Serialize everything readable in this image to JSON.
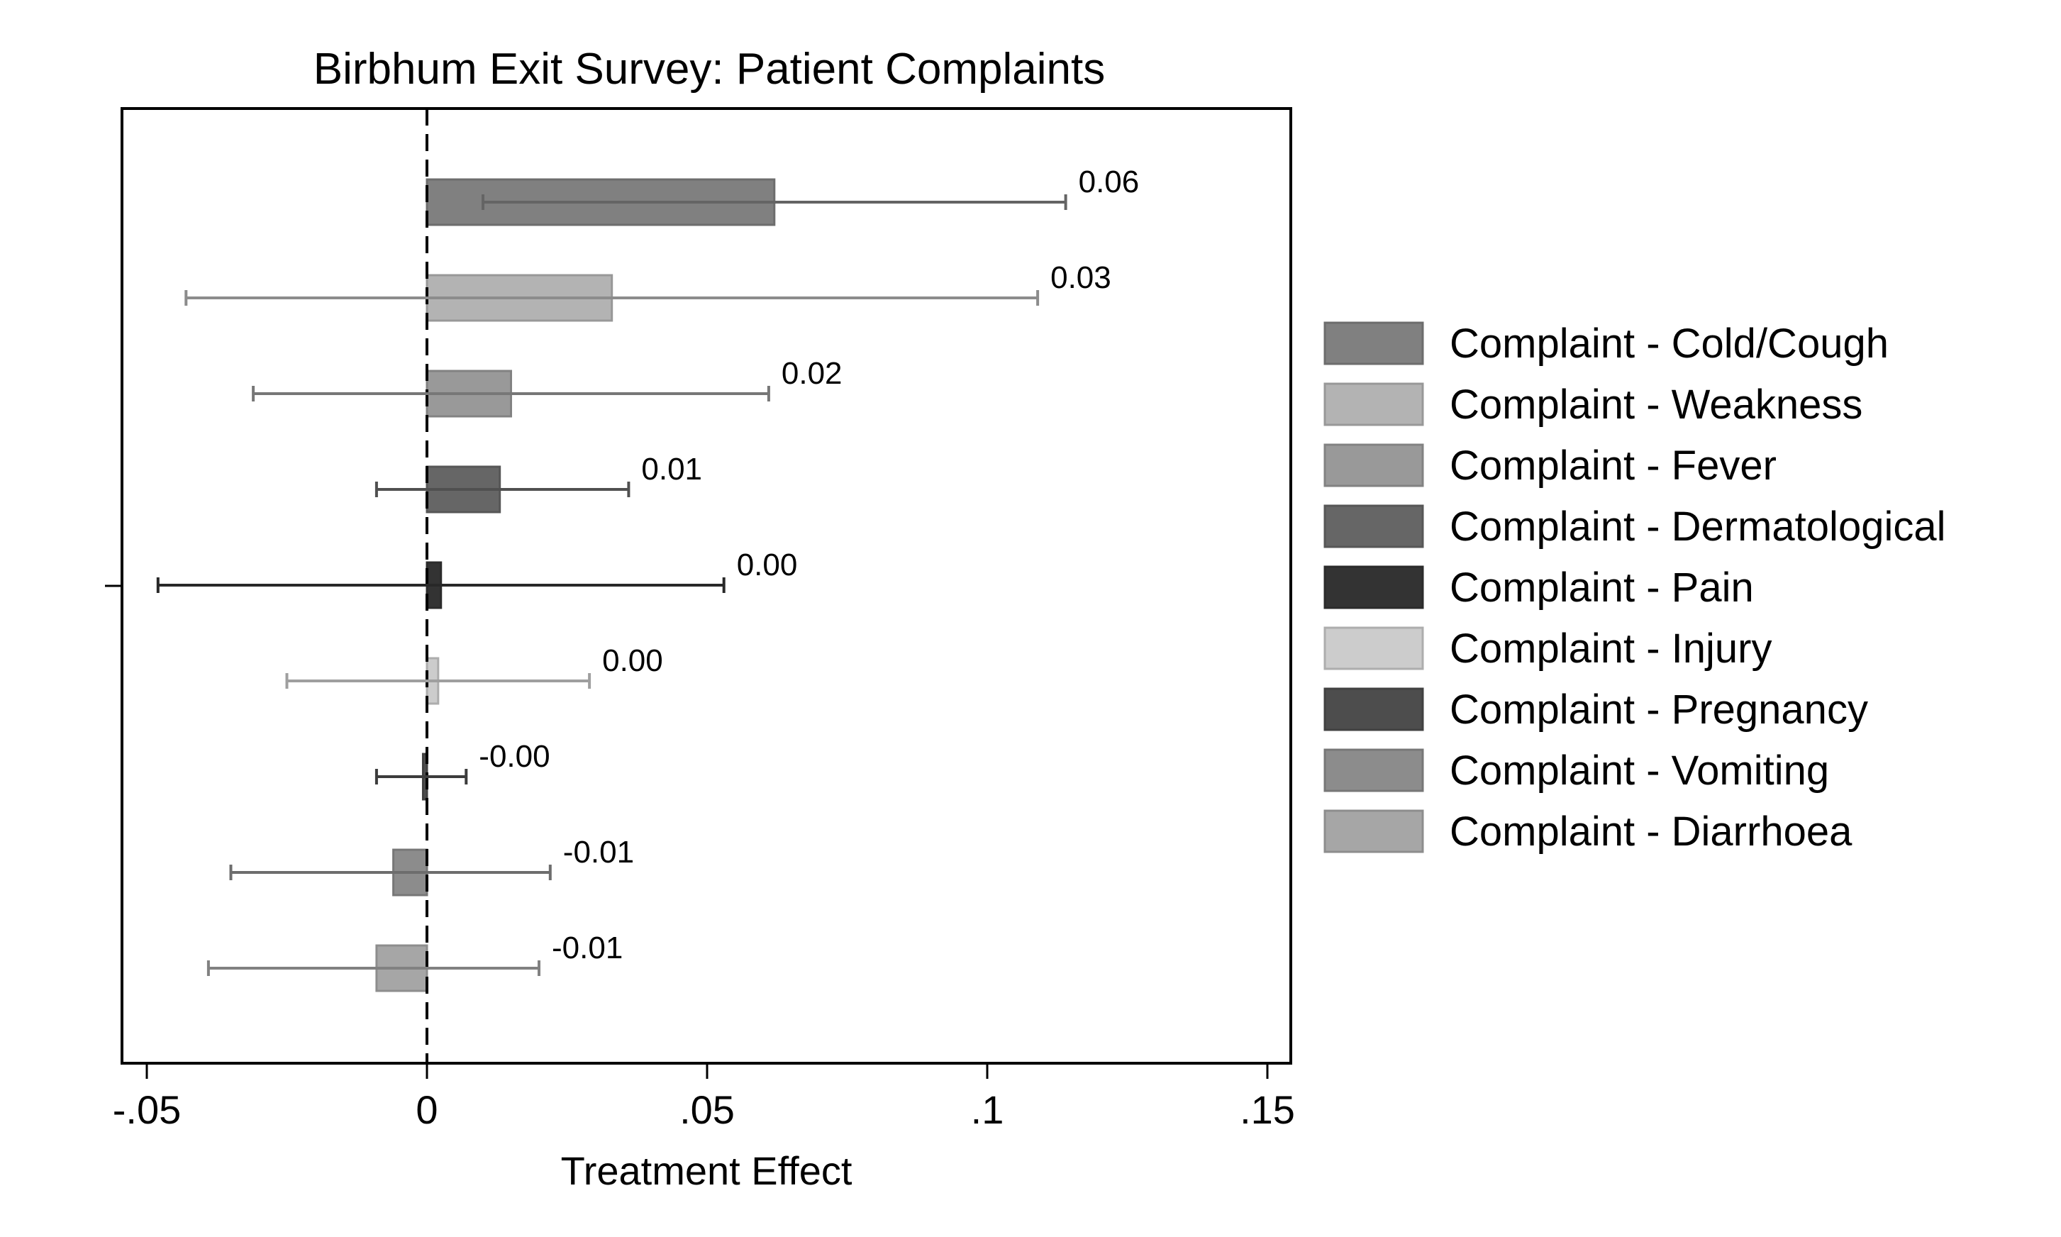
{
  "chart_data": {
    "type": "bar",
    "orientation": "horizontal",
    "title": "Birbhum Exit Survey: Patient Complaints",
    "xlabel": "Treatment Effect",
    "ylabel": "",
    "xlim": [
      -0.05,
      0.15
    ],
    "xticks": [
      -0.05,
      0,
      0.05,
      0.1,
      0.15
    ],
    "xtick_labels": [
      "-.05",
      "0",
      ".05",
      ".1",
      ".15"
    ],
    "reference_line": 0,
    "grid": false,
    "legend_position": "right",
    "series": [
      {
        "name": "Complaint - Cold/Cough",
        "value": 0.062,
        "ci_low": 0.01,
        "ci_high": 0.114,
        "label": "0.06",
        "color": "#808080"
      },
      {
        "name": "Complaint - Weakness",
        "value": 0.033,
        "ci_low": -0.043,
        "ci_high": 0.109,
        "label": "0.03",
        "color": "#b3b3b3"
      },
      {
        "name": "Complaint - Fever",
        "value": 0.015,
        "ci_low": -0.031,
        "ci_high": 0.061,
        "label": "0.02",
        "color": "#999999"
      },
      {
        "name": "Complaint - Dermatological",
        "value": 0.013,
        "ci_low": -0.009,
        "ci_high": 0.036,
        "label": "0.01",
        "color": "#666666"
      },
      {
        "name": "Complaint - Pain",
        "value": 0.0025,
        "ci_low": -0.048,
        "ci_high": 0.053,
        "label": "0.00",
        "color": "#333333"
      },
      {
        "name": "Complaint - Injury",
        "value": 0.002,
        "ci_low": -0.025,
        "ci_high": 0.029,
        "label": "0.00",
        "color": "#cccccc"
      },
      {
        "name": "Complaint - Pregnancy",
        "value": -0.0007,
        "ci_low": -0.009,
        "ci_high": 0.007,
        "label": "-0.00",
        "color": "#4d4d4d"
      },
      {
        "name": "Complaint - Vomiting",
        "value": -0.006,
        "ci_low": -0.035,
        "ci_high": 0.022,
        "label": "-0.01",
        "color": "#8c8c8c"
      },
      {
        "name": "Complaint - Diarrhoea",
        "value": -0.009,
        "ci_low": -0.039,
        "ci_high": 0.02,
        "label": "-0.01",
        "color": "#a6a6a6"
      }
    ]
  }
}
